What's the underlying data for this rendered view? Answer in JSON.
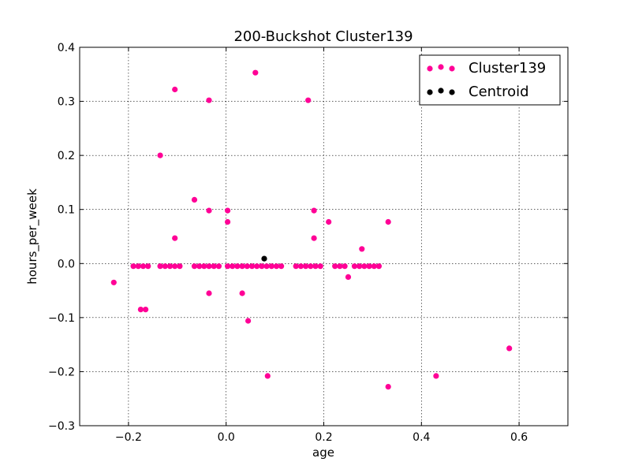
{
  "chart_data": {
    "type": "scatter",
    "title": "200-Buckshot Cluster139",
    "xlabel": "age",
    "ylabel": "hours_per_week",
    "xlim": [
      -0.3,
      0.7
    ],
    "ylim": [
      -0.3,
      0.4
    ],
    "xticks": [
      -0.2,
      0.0,
      0.2,
      0.4,
      0.6
    ],
    "xtick_labels": [
      "−0.2",
      "0.0",
      "0.2",
      "0.4",
      "0.6"
    ],
    "yticks": [
      -0.3,
      -0.2,
      -0.1,
      0.0,
      0.1,
      0.2,
      0.3,
      0.4
    ],
    "ytick_labels": [
      "−0.3",
      "−0.2",
      "−0.1",
      "0.0",
      "0.1",
      "0.2",
      "0.3",
      "0.4"
    ],
    "grid": true,
    "legend_position": "top-right",
    "series": [
      {
        "name": "Cluster139",
        "color": "#ff0096",
        "points": [
          [
            -0.23,
            -0.035
          ],
          [
            -0.19,
            -0.005
          ],
          [
            -0.18,
            -0.005
          ],
          [
            -0.17,
            -0.005
          ],
          [
            -0.16,
            -0.005
          ],
          [
            -0.175,
            -0.085
          ],
          [
            -0.165,
            -0.085
          ],
          [
            -0.135,
            0.2
          ],
          [
            -0.135,
            -0.005
          ],
          [
            -0.125,
            -0.005
          ],
          [
            -0.115,
            -0.005
          ],
          [
            -0.105,
            -0.005
          ],
          [
            -0.095,
            -0.005
          ],
          [
            -0.105,
            0.322
          ],
          [
            -0.105,
            0.047
          ],
          [
            -0.065,
            0.118
          ],
          [
            -0.065,
            -0.005
          ],
          [
            -0.055,
            -0.005
          ],
          [
            -0.045,
            -0.005
          ],
          [
            -0.035,
            -0.005
          ],
          [
            -0.025,
            -0.005
          ],
          [
            -0.015,
            -0.005
          ],
          [
            -0.035,
            0.302
          ],
          [
            -0.035,
            0.098
          ],
          [
            -0.035,
            -0.055
          ],
          [
            0.003,
            0.098
          ],
          [
            0.003,
            0.077
          ],
          [
            0.003,
            -0.005
          ],
          [
            0.013,
            -0.005
          ],
          [
            0.023,
            -0.005
          ],
          [
            0.033,
            -0.005
          ],
          [
            0.043,
            -0.005
          ],
          [
            0.053,
            -0.005
          ],
          [
            0.063,
            -0.005
          ],
          [
            0.033,
            -0.055
          ],
          [
            0.045,
            -0.106
          ],
          [
            0.06,
            0.353
          ],
          [
            0.085,
            -0.208
          ],
          [
            0.073,
            -0.005
          ],
          [
            0.083,
            -0.005
          ],
          [
            0.093,
            -0.005
          ],
          [
            0.103,
            -0.005
          ],
          [
            0.113,
            -0.005
          ],
          [
            0.143,
            -0.005
          ],
          [
            0.153,
            -0.005
          ],
          [
            0.163,
            -0.005
          ],
          [
            0.173,
            -0.005
          ],
          [
            0.183,
            -0.005
          ],
          [
            0.193,
            -0.005
          ],
          [
            0.168,
            0.302
          ],
          [
            0.18,
            0.098
          ],
          [
            0.18,
            0.047
          ],
          [
            0.21,
            0.077
          ],
          [
            0.223,
            -0.005
          ],
          [
            0.233,
            -0.005
          ],
          [
            0.243,
            -0.005
          ],
          [
            0.25,
            -0.025
          ],
          [
            0.278,
            0.027
          ],
          [
            0.263,
            -0.005
          ],
          [
            0.273,
            -0.005
          ],
          [
            0.283,
            -0.005
          ],
          [
            0.293,
            -0.005
          ],
          [
            0.303,
            -0.005
          ],
          [
            0.313,
            -0.005
          ],
          [
            0.332,
            0.077
          ],
          [
            0.332,
            -0.228
          ],
          [
            0.43,
            -0.208
          ],
          [
            0.58,
            -0.157
          ]
        ]
      },
      {
        "name": "Centroid",
        "color": "#000000",
        "points": [
          [
            0.078,
            0.009
          ]
        ]
      }
    ]
  }
}
